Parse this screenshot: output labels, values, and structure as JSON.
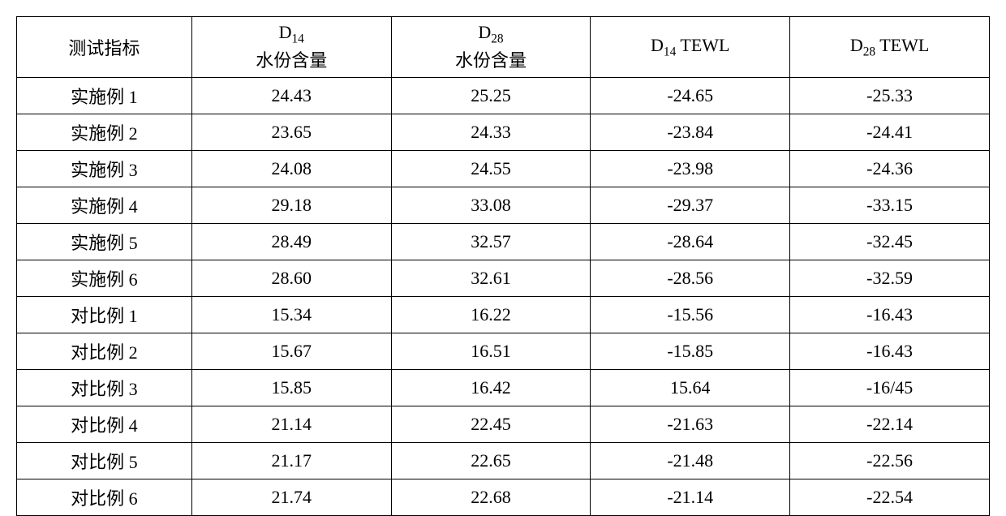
{
  "table": {
    "type": "table",
    "background_color": "#ffffff",
    "border_color": "#000000",
    "font_family": "SimSun",
    "header_fontsize": 22,
    "cell_fontsize": 22,
    "columns": [
      {
        "key": "metric",
        "label_plain": "测试指标",
        "label_html": "测试指标",
        "align": "center"
      },
      {
        "key": "d14_moist",
        "label_plain": "D14 水份含量",
        "label_html": "D<sub>14</sub><br>水份含量",
        "align": "center"
      },
      {
        "key": "d28_moist",
        "label_plain": "D28 水份含量",
        "label_html": "D<sub>28</sub><br>水份含量",
        "align": "center"
      },
      {
        "key": "d14_tewl",
        "label_plain": "D14 TEWL",
        "label_html": "D<sub>14</sub> TEWL",
        "align": "center"
      },
      {
        "key": "d28_tewl",
        "label_plain": "D28 TEWL",
        "label_html": "D<sub>28</sub> TEWL",
        "align": "center"
      }
    ],
    "rows": [
      [
        "实施例 1",
        "24.43",
        "25.25",
        "-24.65",
        "-25.33"
      ],
      [
        "实施例 2",
        "23.65",
        "24.33",
        "-23.84",
        "-24.41"
      ],
      [
        "实施例 3",
        "24.08",
        "24.55",
        "-23.98",
        "-24.36"
      ],
      [
        "实施例 4",
        "29.18",
        "33.08",
        "-29.37",
        "-33.15"
      ],
      [
        "实施例 5",
        "28.49",
        "32.57",
        "-28.64",
        "-32.45"
      ],
      [
        "实施例 6",
        "28.60",
        "32.61",
        "-28.56",
        "-32.59"
      ],
      [
        "对比例 1",
        "15.34",
        "16.22",
        "-15.56",
        "-16.43"
      ],
      [
        "对比例 2",
        "15.67",
        "16.51",
        "-15.85",
        "-16.43"
      ],
      [
        "对比例 3",
        "15.85",
        "16.42",
        "15.64",
        "-16/45"
      ],
      [
        "对比例 4",
        "21.14",
        "22.45",
        "-21.63",
        "-22.14"
      ],
      [
        "对比例 5",
        "21.17",
        "22.65",
        "-21.48",
        "-22.56"
      ],
      [
        "对比例 6",
        "21.74",
        "22.68",
        "-21.14",
        "-22.54"
      ]
    ]
  }
}
